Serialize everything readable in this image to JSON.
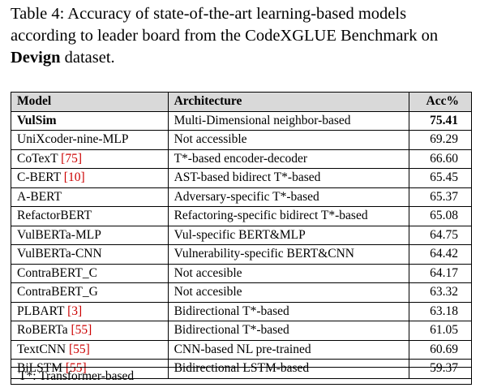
{
  "caption": {
    "prefix": "Table 4: Accuracy of state-of-the-art learning-based models according to leader board from the CodeXGLUE Benchmark on ",
    "dataset": "Devign",
    "suffix": " dataset."
  },
  "table": {
    "headers": {
      "model": "Model",
      "architecture": "Architecture",
      "acc": "Acc%"
    },
    "header_bg": "#d9d9d9",
    "citation_color": "#cc0000",
    "rows": [
      {
        "model": "VulSim",
        "cite": "",
        "architecture": "Multi-Dimensional neighbor-based",
        "acc": "75.41",
        "bold": true
      },
      {
        "model": "UniXcoder-nine-MLP",
        "cite": "",
        "architecture": "Not accessible",
        "acc": "69.29",
        "bold": false
      },
      {
        "model": "CoTexT ",
        "cite": "[75]",
        "architecture": "T*-based encoder-decoder",
        "acc": "66.60",
        "bold": false
      },
      {
        "model": "C-BERT ",
        "cite": "[10]",
        "architecture": "AST-based bidirect T*-based",
        "acc": "65.45",
        "bold": false
      },
      {
        "model": "A-BERT",
        "cite": "",
        "architecture": "Adversary-specific T*-based",
        "acc": "65.37",
        "bold": false
      },
      {
        "model": "RefactorBERT",
        "cite": "",
        "architecture": "Refactoring-specific bidirect T*-based",
        "acc": "65.08",
        "bold": false
      },
      {
        "model": "VulBERTa-MLP",
        "cite": "",
        "architecture": "Vul-specific BERT&MLP",
        "acc": "64.75",
        "bold": false
      },
      {
        "model": "VulBERTa-CNN",
        "cite": "",
        "architecture": "Vulnerability-specific BERT&CNN",
        "acc": "64.42",
        "bold": false
      },
      {
        "model": "ContraBERT_C",
        "cite": "",
        "architecture": "Not accesible",
        "acc": "64.17",
        "bold": false
      },
      {
        "model": "ContraBERT_G",
        "cite": "",
        "architecture": "Not accesible",
        "acc": "63.32",
        "bold": false
      },
      {
        "model": "PLBART ",
        "cite": "[3]",
        "architecture": "Bidirectional T*-based",
        "acc": "63.18",
        "bold": false
      },
      {
        "model": "RoBERTa ",
        "cite": "[55]",
        "architecture": "Bidirectional T*-based",
        "acc": "61.05",
        "bold": false
      },
      {
        "model": "TextCNN ",
        "cite": "[55]",
        "architecture": "CNN-based NL pre-trained",
        "acc": "60.69",
        "bold": false
      },
      {
        "model": "BiLSTM ",
        "cite": "[55]",
        "architecture": "Bidirectional LSTM-based",
        "acc": "59.37",
        "bold": false
      }
    ]
  },
  "footnote": "T*: Transformer-based"
}
